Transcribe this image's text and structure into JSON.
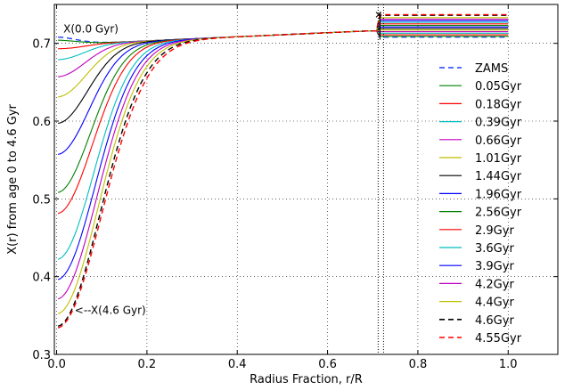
{
  "chart_data": {
    "type": "line",
    "title": "",
    "xlabel": "Radius Fraction, r/R",
    "ylabel": "X(r) from age 0 to 4.6 Gyr",
    "xlim": [
      -0.005,
      1.11
    ],
    "ylim": [
      0.3,
      0.75
    ],
    "xticks": [
      0.0,
      0.2,
      0.4,
      0.6,
      0.8,
      1.0
    ],
    "xtick_labels": [
      "0.0",
      "0.2",
      "0.4",
      "0.6",
      "0.8",
      "1.0"
    ],
    "yticks": [
      0.3,
      0.4,
      0.5,
      0.6,
      0.7
    ],
    "ytick_labels": [
      "0.3",
      "0.4",
      "0.5",
      "0.6",
      "0.7"
    ],
    "grid": true,
    "legend_position": "right",
    "annotations": [
      {
        "text": "X(0.0 Gyr)",
        "x": 0.015,
        "y": 0.714
      },
      {
        "text": "<--X(4.6 Gyr)",
        "x": 0.04,
        "y": 0.352
      }
    ],
    "series": [
      {
        "name": "ZAMS",
        "color": "#1f3fff",
        "dash": true,
        "center": 0.708,
        "envelope": 0.708
      },
      {
        "name": "0.05Gyr",
        "color": "#008000",
        "dash": false,
        "center": 0.704,
        "envelope": 0.709
      },
      {
        "name": "0.18Gyr",
        "color": "#ff0000",
        "dash": false,
        "center": 0.693,
        "envelope": 0.711
      },
      {
        "name": "0.39Gyr",
        "color": "#00bfbf",
        "dash": false,
        "center": 0.679,
        "envelope": 0.713
      },
      {
        "name": "0.66Gyr",
        "color": "#bf00bf",
        "dash": false,
        "center": 0.657,
        "envelope": 0.715
      },
      {
        "name": "1.01Gyr",
        "color": "#bfbf00",
        "dash": false,
        "center": 0.631,
        "envelope": 0.717
      },
      {
        "name": "1.44Gyr",
        "color": "#000000",
        "dash": false,
        "center": 0.597,
        "envelope": 0.719
      },
      {
        "name": "1.96Gyr",
        "color": "#0000ff",
        "dash": false,
        "center": 0.557,
        "envelope": 0.721
      },
      {
        "name": "2.56Gyr",
        "color": "#008000",
        "dash": false,
        "center": 0.508,
        "envelope": 0.723
      },
      {
        "name": "2.9Gyr",
        "color": "#ff0000",
        "dash": false,
        "center": 0.481,
        "envelope": 0.725
      },
      {
        "name": "3.6Gyr",
        "color": "#00bfbf",
        "dash": false,
        "center": 0.422,
        "envelope": 0.727
      },
      {
        "name": "3.9Gyr",
        "color": "#0000ff",
        "dash": false,
        "center": 0.396,
        "envelope": 0.729
      },
      {
        "name": "4.2Gyr",
        "color": "#bf00bf",
        "dash": false,
        "center": 0.371,
        "envelope": 0.731
      },
      {
        "name": "4.4Gyr",
        "color": "#bfbf00",
        "dash": false,
        "center": 0.352,
        "envelope": 0.733
      },
      {
        "name": "4.6Gyr",
        "color": "#000000",
        "dash": true,
        "center": 0.336,
        "envelope": 0.736
      },
      {
        "name": "4.55Gyr",
        "color": "#ff0000",
        "dash": true,
        "center": 0.334,
        "envelope": 0.737
      }
    ]
  }
}
